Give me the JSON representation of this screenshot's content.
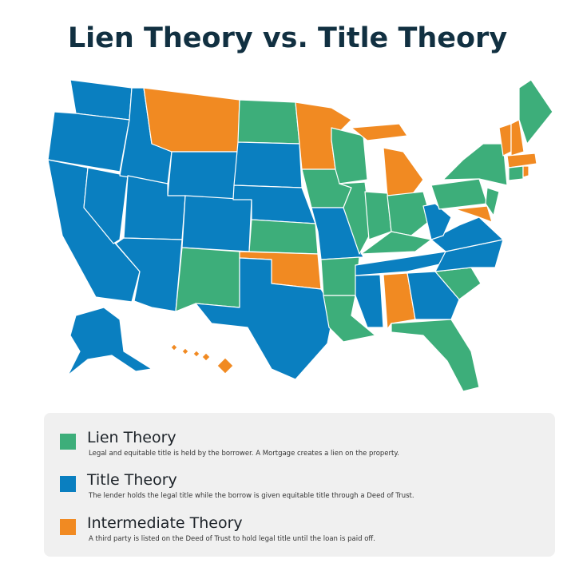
{
  "title": "Lien Theory vs. Title Theory",
  "colors": {
    "lien": "#3dae7a",
    "title": "#0a7fc0",
    "intermediate": "#f18a22",
    "title_text": "#113041"
  },
  "legend": [
    {
      "key": "lien",
      "label": "Lien Theory",
      "description": "Legal and equitable title is held by the borrower. A Mortgage creates a lien on the property."
    },
    {
      "key": "title",
      "label": "Title Theory",
      "description": "The lender holds the legal title while the borrow is given equitable title through a Deed of Trust."
    },
    {
      "key": "intermediate",
      "label": "Intermediate Theory",
      "description": "A third party is listed on the Deed of Trust to hold legal title until the loan is paid off."
    }
  ],
  "map_data": {
    "WA": "title",
    "OR": "title",
    "CA": "title",
    "NV": "title",
    "ID": "title",
    "MT": "intermediate",
    "WY": "title",
    "UT": "title",
    "AZ": "title",
    "CO": "title",
    "NM": "lien",
    "ND": "lien",
    "SD": "title",
    "NE": "title",
    "KS": "lien",
    "OK": "intermediate",
    "TX": "title",
    "MN": "intermediate",
    "IA": "lien",
    "MO": "title",
    "AR": "lien",
    "LA": "lien",
    "WI": "lien",
    "IL": "lien",
    "MI-UP": "intermediate",
    "MI": "intermediate",
    "IN": "lien",
    "OH": "lien",
    "KY": "lien",
    "TN": "title",
    "MS": "title",
    "AL": "intermediate",
    "GA": "title",
    "FL": "lien",
    "SC": "lien",
    "NC": "title",
    "VA": "title",
    "WV": "title",
    "PA": "lien",
    "NY": "lien",
    "NJ": "lien",
    "MD": "intermediate",
    "VT": "intermediate",
    "NH": "intermediate",
    "ME": "lien",
    "MA": "intermediate",
    "CT": "lien",
    "RI": "intermediate",
    "AK": "title",
    "HI": "intermediate"
  }
}
